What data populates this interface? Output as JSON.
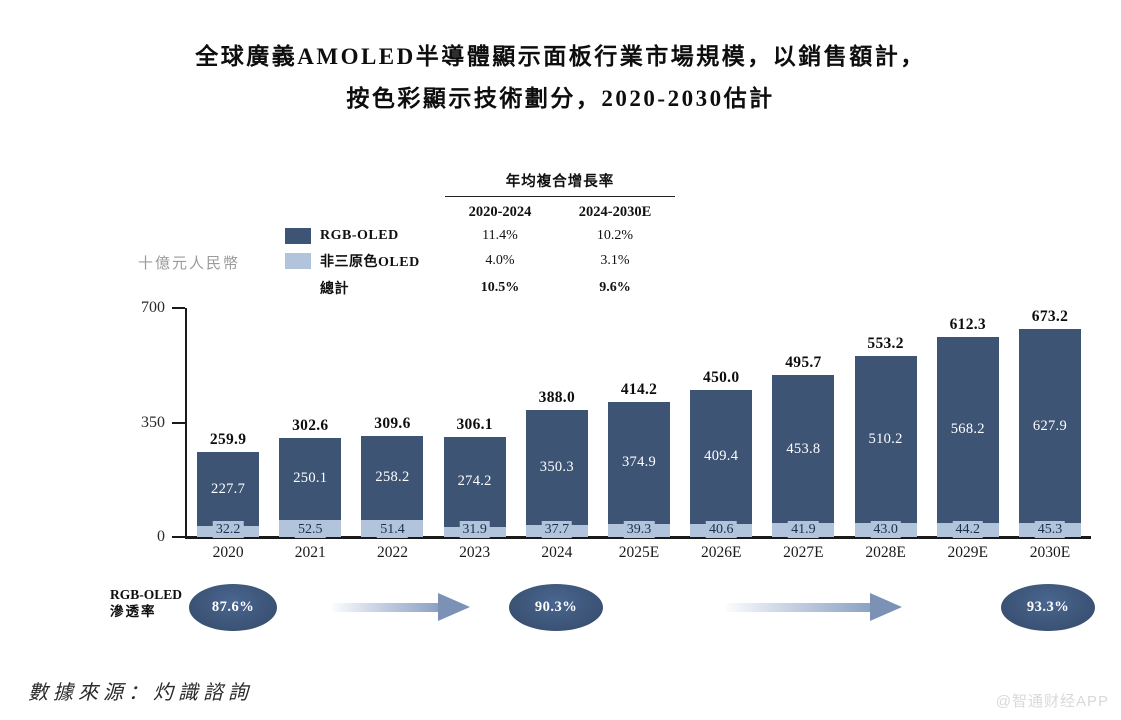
{
  "title": {
    "line1": "全球廣義AMOLED半導體顯示面板行業市場規模，以銷售額計，",
    "line2": "按色彩顯示技術劃分，2020-2030估計"
  },
  "unit_label": "十億元人民幣",
  "cagr_table": {
    "header": "年均複合增長率",
    "columns": [
      "2020-2024",
      "2024-2030E"
    ],
    "rows": [
      {
        "label": "RGB-OLED",
        "values": [
          "11.4%",
          "10.2%"
        ]
      },
      {
        "label": "非三原色OLED",
        "values": [
          "4.0%",
          "3.1%"
        ]
      },
      {
        "label": "總計",
        "values": [
          "10.5%",
          "9.6%"
        ]
      }
    ]
  },
  "chart_data": {
    "type": "bar",
    "stacked": true,
    "title": "全球廣義AMOLED半導體顯示面板行業市場規模，以銷售額計，按色彩顯示技術劃分，2020-2030估計",
    "ylabel": "十億元人民幣",
    "categories": [
      "2020",
      "2021",
      "2022",
      "2023",
      "2024",
      "2025E",
      "2026E",
      "2027E",
      "2028E",
      "2029E",
      "2030E"
    ],
    "series": [
      {
        "name": "RGB-OLED",
        "color": "#3d5474",
        "values": [
          227.7,
          250.1,
          258.2,
          274.2,
          350.3,
          374.9,
          409.4,
          453.8,
          510.2,
          568.2,
          627.9
        ]
      },
      {
        "name": "非三原色OLED",
        "color": "#b2c4dc",
        "values": [
          32.2,
          52.5,
          51.4,
          31.9,
          37.7,
          39.3,
          40.6,
          41.9,
          43.0,
          44.2,
          45.3
        ]
      }
    ],
    "totals": [
      259.9,
      302.6,
      309.6,
      306.1,
      388.0,
      414.2,
      450.0,
      495.7,
      553.2,
      612.3,
      673.2
    ],
    "ylim": [
      0,
      700
    ],
    "yticks": [
      0,
      350,
      700
    ],
    "grid": false,
    "legend_position": "top-left"
  },
  "penetration": {
    "label_line1": "RGB-OLED",
    "label_line2": "滲透率",
    "values": [
      "87.6%",
      "90.3%",
      "93.3%"
    ]
  },
  "source": "數據來源：灼識諮詢",
  "watermark": "@智通财经APP",
  "colors": {
    "rgb_oled": "#3d5474",
    "non_rgb_oled": "#b2c4dc",
    "ellipse": "#3d5679",
    "arrow": "#8ca2c4",
    "axis": "#1a1a1a"
  }
}
